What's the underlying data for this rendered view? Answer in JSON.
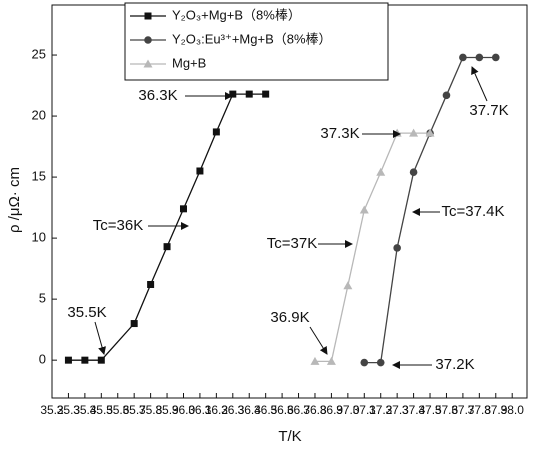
{
  "chart_data": {
    "type": "line",
    "xlabel": "T/K",
    "ylabel": "ρ /μΩ· cm",
    "xlim": [
      35.2,
      38.09
    ],
    "ylim": [
      -3.1,
      29.1
    ],
    "xticks": [
      35.2,
      35.3,
      35.4,
      35.5,
      35.6,
      35.7,
      35.8,
      35.9,
      {
        "value": 36,
        "label": "36.0"
      },
      36.1,
      36.2,
      36.3,
      36.4,
      36.5,
      36.6,
      36.7,
      36.8,
      36.9,
      {
        "value": 37,
        "label": "37.0"
      },
      37.1,
      37.2,
      37.3,
      37.4,
      37.5,
      37.6,
      37.7,
      37.8,
      37.9,
      {
        "value": 38,
        "label": "38.0"
      }
    ],
    "yticks": [
      0,
      5,
      10,
      15,
      20,
      25
    ],
    "series": [
      {
        "name": "Y₂O₃+Mg+B（8%棒）",
        "color": "#111111",
        "marker": "square",
        "x": [
          35.3,
          35.4,
          35.5,
          35.7,
          35.8,
          35.9,
          36.0,
          36.1,
          36.2,
          36.3,
          36.4,
          36.5
        ],
        "values": [
          0,
          0,
          0,
          3,
          6.2,
          9.3,
          12.4,
          15.5,
          18.7,
          21.8,
          21.8,
          21.8
        ]
      },
      {
        "name": "Y₂O₃:Eu³⁺+Mg+B（8%棒）",
        "color": "#444444",
        "marker": "circle",
        "x": [
          37.1,
          37.2,
          37.3,
          37.4,
          37.5,
          37.6,
          37.7,
          37.8,
          37.9
        ],
        "values": [
          -0.2,
          -0.2,
          9.2,
          15.4,
          18.6,
          21.7,
          24.8,
          24.8,
          24.8
        ]
      },
      {
        "name": "Mg+B",
        "color": "#b8b8b8",
        "marker": "triangle",
        "x": [
          36.8,
          36.9,
          37.0,
          37.1,
          37.2,
          37.3,
          37.4,
          37.5
        ],
        "values": [
          -0.1,
          -0.1,
          6.1,
          12.3,
          15.4,
          18.6,
          18.6,
          18.6
        ]
      }
    ],
    "annotations": [
      "36.3K",
      "Tc=36K",
      "35.5K",
      "37.3K",
      "Tc=37K",
      "36.9K",
      "37.7K",
      "Tc=37.4K",
      "37.2K"
    ]
  }
}
